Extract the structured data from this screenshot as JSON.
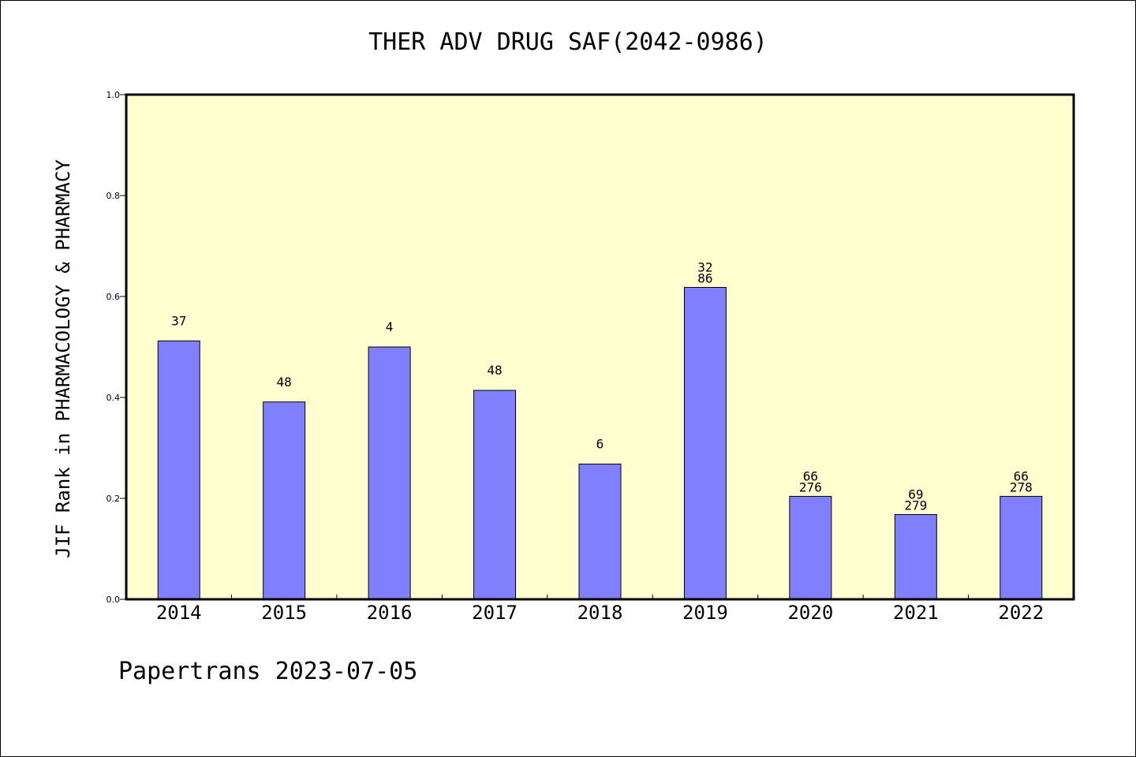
{
  "title": "THER ADV DRUG SAF(2042-0986)",
  "footer": "Papertrans 2023-07-05",
  "colors": {
    "plot_background": "#ffffd0",
    "bar": "#8080ff",
    "frame": "#000000"
  },
  "chart_data": {
    "type": "bar",
    "title": "THER ADV DRUG SAF(2042-0986)",
    "ylabel": "JIF Rank in PHARMACOLOGY & PHARMACY",
    "xlabel": "",
    "ylim": [
      0,
      1.0
    ],
    "yticks": [
      "0.0",
      "0.2",
      "0.4",
      "0.6",
      "0.8",
      "1.0"
    ],
    "grid": false,
    "categories": [
      "2014",
      "2015",
      "2016",
      "2017",
      "2018",
      "2019",
      "2020",
      "2021",
      "2022"
    ],
    "values": [
      0.512,
      0.391,
      0.5,
      0.414,
      0.268,
      0.618,
      0.204,
      0.168,
      0.204
    ],
    "labels": [
      [
        "37"
      ],
      [
        "48"
      ],
      [
        "4"
      ],
      [
        "48"
      ],
      [
        "6"
      ],
      [
        "32",
        "86"
      ],
      [
        "66",
        "276"
      ],
      [
        "69",
        "279"
      ],
      [
        "66",
        "278"
      ]
    ]
  }
}
